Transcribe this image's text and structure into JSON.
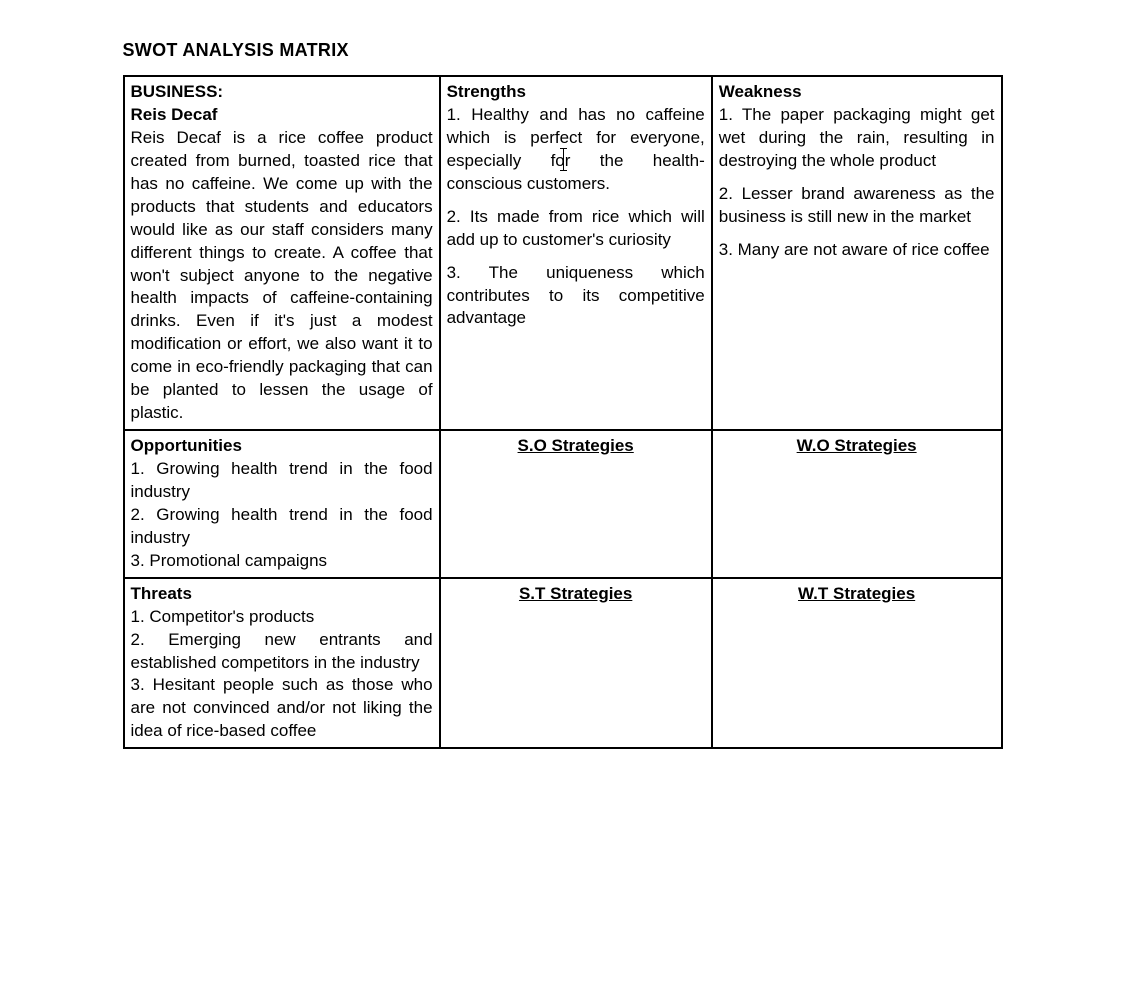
{
  "title": "SWOT ANALYSIS MATRIX",
  "business": {
    "label": "BUSINESS:",
    "name": "Reis Decaf",
    "description": "Reis Decaf is a rice coffee product created from burned, toasted rice that has no caffeine. We come up with the products that students and educators would like as our staff considers many different things to create. A coffee that won't subject anyone to the negative health impacts of caffeine-containing drinks. Even if it's just a modest modification or effort, we also want it to come in eco-friendly packaging that can be planted to lessen the usage of plastic."
  },
  "strengths": {
    "label": "Strengths",
    "items": [
      "1. Healthy and has no caffeine which is perfect for everyone, especially for the health-conscious customers.",
      "2. Its made from rice which will add up to customer's curiosity",
      "3. The uniqueness which contributes to its competitive advantage"
    ]
  },
  "weakness": {
    "label": "Weakness",
    "items": [
      "1. The paper packaging might get wet during the rain, resulting in destroying the whole product",
      "2. Lesser brand awareness as the business is still new in the market",
      "3. Many are not aware of rice coffee"
    ]
  },
  "opportunities": {
    "label": "Opportunities",
    "items": [
      "1. Growing health trend in the food industry",
      "2. Growing health trend in the food industry",
      "3. Promotional campaigns"
    ]
  },
  "threats": {
    "label": "Threats",
    "items": [
      "1. Competitor's products",
      "2. Emerging new entrants and established competitors in the industry",
      "3. Hesitant people such as those who are not convinced and/or not liking the idea of rice-based coffee"
    ]
  },
  "so_label": "S.O Strategies",
  "wo_label": "W.O Strategies",
  "st_label": "S.T Strategies",
  "wt_label": "W.T Strategies",
  "cursor_word_before": "fo",
  "cursor_word_after": "r"
}
